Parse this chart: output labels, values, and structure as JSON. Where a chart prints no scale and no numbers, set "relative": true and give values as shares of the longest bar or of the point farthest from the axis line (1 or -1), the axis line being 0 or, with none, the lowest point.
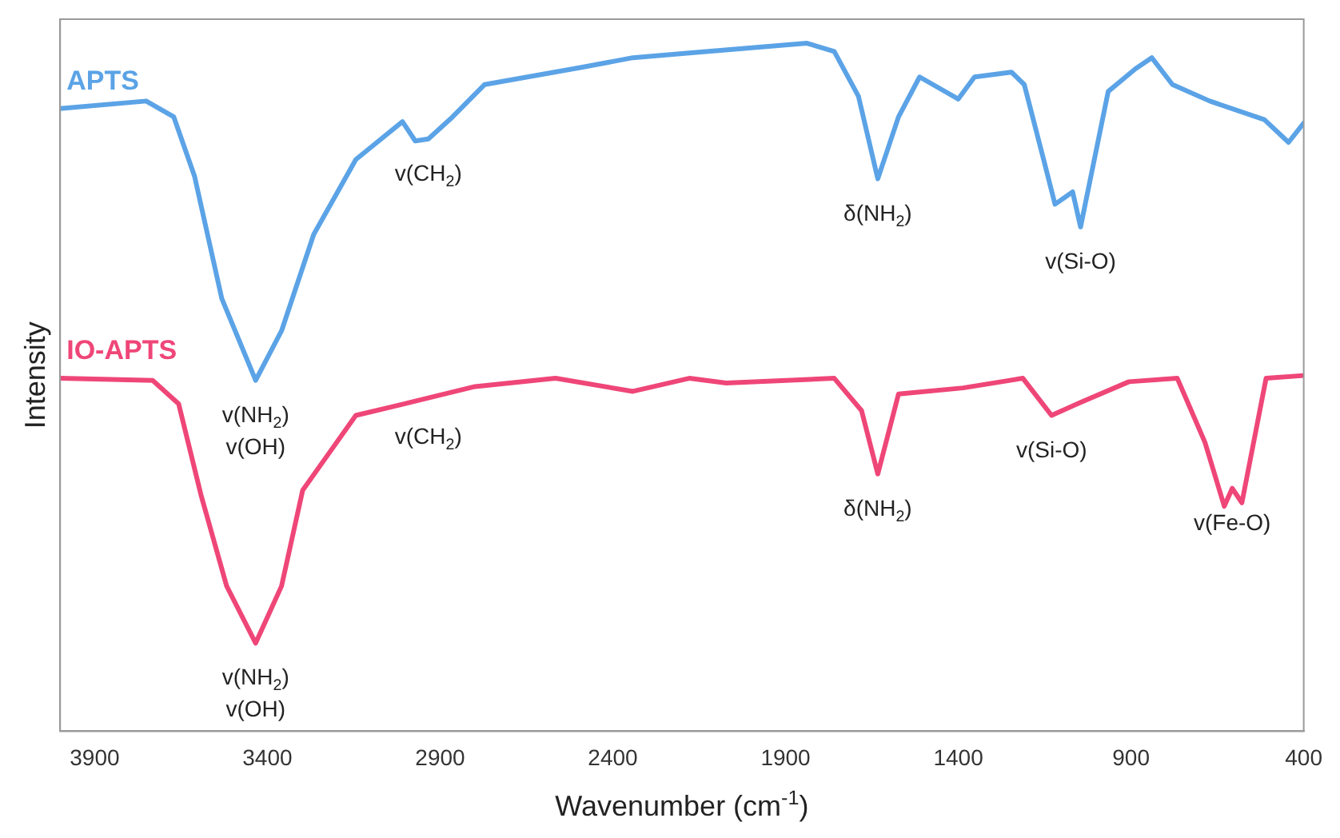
{
  "chart_data": {
    "type": "line",
    "xlabel": "Wavenumber (cm$^{-1}$)",
    "ylabel": "Intensity",
    "relative": true,
    "xlim": [
      4000,
      400
    ],
    "xticks": [
      3900,
      3400,
      2900,
      2400,
      1900,
      1400,
      900,
      400
    ],
    "legend": false,
    "grid": false,
    "marker": "none",
    "line_style": "solid",
    "series": [
      {
        "name": "APTS",
        "color": "#5ba3e6",
        "x": [
          4000,
          3751,
          3671,
          3611,
          3532,
          3434,
          3359,
          3266,
          3144,
          3009,
          2972,
          2934,
          2864,
          2771,
          2491,
          2342,
          2179,
          1838,
          1759,
          1689,
          1633,
          1573,
          1512,
          1400,
          1353,
          1246,
          1209,
          1153,
          1120,
          1069,
          1046,
          966,
          887,
          840,
          780,
          672,
          514,
          444,
          400
        ],
        "values": [
          0.905,
          0.916,
          0.893,
          0.807,
          0.629,
          0.51,
          0.582,
          0.722,
          0.831,
          0.886,
          0.858,
          0.861,
          0.893,
          0.94,
          0.965,
          0.979,
          0.986,
          1.0,
          0.988,
          0.923,
          0.803,
          0.893,
          0.951,
          0.919,
          0.951,
          0.958,
          0.94,
          0.831,
          0.766,
          0.784,
          0.733,
          0.93,
          0.963,
          0.979,
          0.94,
          0.916,
          0.889,
          0.856,
          0.884
        ]
      },
      {
        "name": "IO-APTS",
        "color": "#ef4678",
        "x": [
          4000,
          3732,
          3657,
          3592,
          3518,
          3434,
          3359,
          3298,
          3219,
          3144,
          2986,
          2799,
          2566,
          2342,
          2179,
          2072,
          1759,
          1680,
          1633,
          1573,
          1386,
          1213,
          1130,
          1046,
          906,
          766,
          686,
          630,
          607,
          579,
          509,
          400
        ],
        "values": [
          0.513,
          0.51,
          0.476,
          0.343,
          0.211,
          0.128,
          0.211,
          0.35,
          0.406,
          0.459,
          0.478,
          0.501,
          0.513,
          0.494,
          0.513,
          0.506,
          0.513,
          0.466,
          0.374,
          0.49,
          0.499,
          0.513,
          0.459,
          0.478,
          0.508,
          0.513,
          0.42,
          0.327,
          0.353,
          0.332,
          0.513,
          0.517
        ]
      }
    ],
    "annotations": [
      {
        "text": "v(CH$_{2}$)",
        "x": 2934,
        "y": 0.861
      },
      {
        "text": "v(NH$_{2}$)\nv(OH)",
        "x": 3434,
        "y": 0.51
      },
      {
        "text": "δ(NH$_{2}$)",
        "x": 1633,
        "y": 0.803
      },
      {
        "text": "v(Si-O)",
        "x": 1046,
        "y": 0.733
      },
      {
        "text": "v(CH$_{2}$)",
        "x": 2934,
        "y": 0.478
      },
      {
        "text": "v(NH$_{2}$)\nv(OH)",
        "x": 3434,
        "y": 0.128
      },
      {
        "text": "δ(NH$_{2}$)",
        "x": 1633,
        "y": 0.374
      },
      {
        "text": "v(Si-O)",
        "x": 1130,
        "y": 0.459
      },
      {
        "text": "v(Fe-O)",
        "x": 607,
        "y": 0.353
      }
    ]
  }
}
